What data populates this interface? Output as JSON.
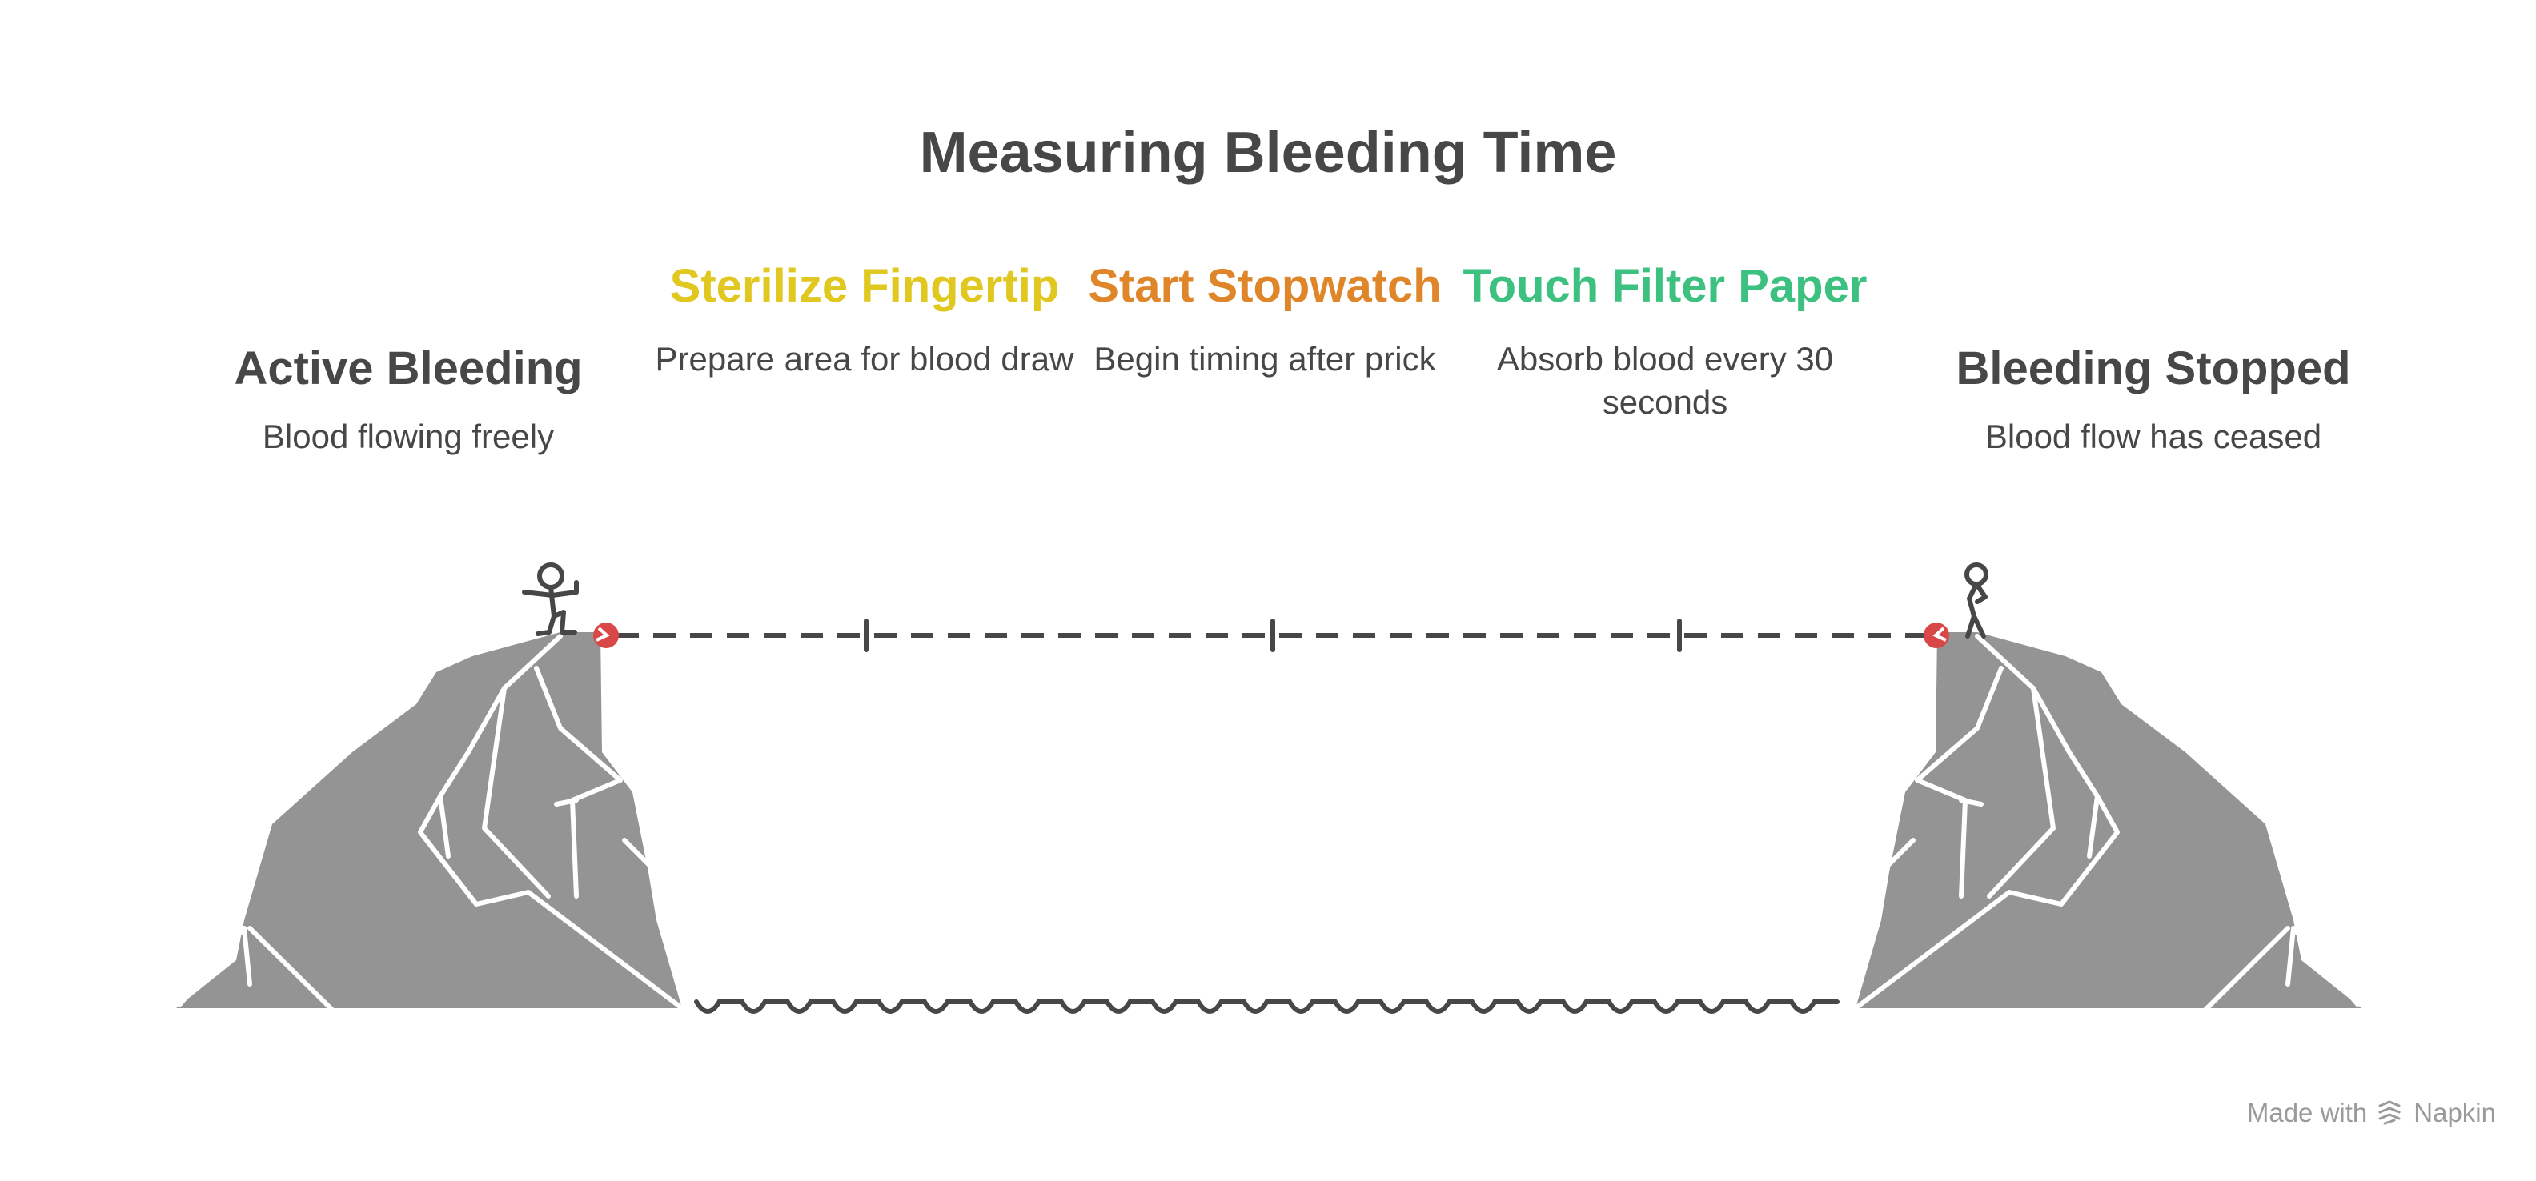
{
  "title": "Measuring Bleeding Time",
  "start": {
    "heading": "Active Bleeding",
    "description": "Blood flowing freely"
  },
  "steps": [
    {
      "heading": "Sterilize Fingertip",
      "description": "Prepare area for blood draw",
      "color": "#E1C820"
    },
    {
      "heading": "Start Stopwatch",
      "description": "Begin timing after prick",
      "color": "#E0862A"
    },
    {
      "heading": "Touch Filter Paper",
      "description": "Absorb blood every 30 seconds",
      "color": "#3CC180"
    }
  ],
  "end": {
    "heading": "Bleeding Stopped",
    "description": "Blood flow has ceased"
  },
  "colors": {
    "text": "#474747",
    "rock": "#949494",
    "marker": "#D94848",
    "line": "#474747"
  },
  "footer": {
    "made_with": "Made with",
    "brand": "Napkin"
  }
}
